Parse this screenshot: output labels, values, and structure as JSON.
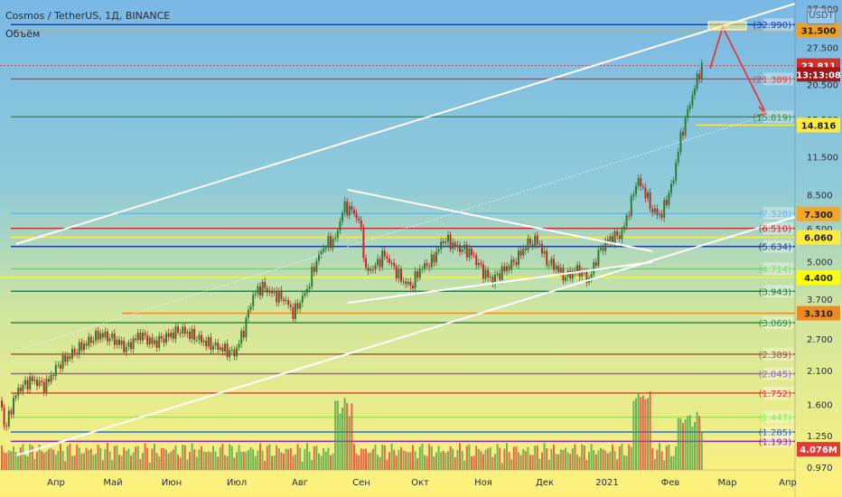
{
  "header": {
    "title": "Cosmos / TetherUS, 1Д, BINANCE",
    "volume_label": "Объём",
    "currency": "USDT"
  },
  "chart_data": {
    "type": "candlestick",
    "y_scale": "log",
    "ylim": [
      0.95,
      39
    ],
    "y_ticks": [
      "37.500",
      "27.500",
      "20.500",
      "15.500",
      "11.500",
      "8.500",
      "6.500",
      "5.000",
      "3.700",
      "2.700",
      "2.100",
      "1.600",
      "1.250",
      "0.970"
    ],
    "y_tick_values": [
      37.5,
      27.5,
      20.5,
      15.5,
      11.5,
      8.5,
      6.5,
      5.0,
      3.7,
      2.7,
      2.1,
      1.6,
      1.25,
      0.97
    ],
    "x_ticks": [
      "Апр",
      "Май",
      "Июн",
      "Июл",
      "Авг",
      "Сен",
      "Окт",
      "Ноя",
      "Дек",
      "2021",
      "Фев",
      "Мар",
      "Апр"
    ],
    "price_levels": [
      {
        "label": "32.990",
        "value": 32.99,
        "color": "#1c3fa6",
        "boxed": false
      },
      {
        "label": "31.500",
        "value": 31.5,
        "color": "#f0a020",
        "boxed": true,
        "text_color": "#222222"
      },
      {
        "label": "23.811",
        "value": 23.811,
        "color": "#d32f2f",
        "boxed": true,
        "text_color": "#ffffff",
        "dashed": true
      },
      {
        "label": "13:13:08",
        "value": 22.2,
        "color": "#a01818",
        "boxed": true,
        "text_color": "#ffffff",
        "tag_only": true
      },
      {
        "label": "21.389",
        "value": 21.389,
        "color": "#e53935",
        "boxed": false
      },
      {
        "label": "15.819",
        "value": 15.819,
        "color": "#388e3c",
        "boxed": false
      },
      {
        "label": "14.816",
        "value": 14.816,
        "color": "#ffeb3b",
        "boxed": true,
        "text_color": "#222222"
      },
      {
        "label": "7.328",
        "value": 7.328,
        "color": "#64b5f6",
        "boxed": false
      },
      {
        "label": "7.300",
        "value": 7.3,
        "color": "#f5a623",
        "boxed": true,
        "text_color": "#222222",
        "tag_only": true
      },
      {
        "label": "6.510",
        "value": 6.51,
        "color": "#c62828",
        "boxed": false
      },
      {
        "label": "6.060",
        "value": 6.06,
        "color": "#ffeb3b",
        "boxed": true,
        "text_color": "#222222"
      },
      {
        "label": "5.634",
        "value": 5.634,
        "color": "#1a3d8f",
        "boxed": false
      },
      {
        "label": "4.714",
        "value": 4.714,
        "color": "#66dd66",
        "boxed": false
      },
      {
        "label": "4.400",
        "value": 4.4,
        "color": "#ffff00",
        "boxed": true,
        "text_color": "#222222"
      },
      {
        "label": "3.943",
        "value": 3.943,
        "color": "#1f7a4a",
        "boxed": false
      },
      {
        "label": "3.310",
        "value": 3.31,
        "color": "#f08a20",
        "boxed": true,
        "text_color": "#222222"
      },
      {
        "label": "3.069",
        "value": 3.069,
        "color": "#2e8b3a",
        "boxed": false
      },
      {
        "label": "2.389",
        "value": 2.389,
        "color": "#a0522d",
        "boxed": false
      },
      {
        "label": "2.045",
        "value": 2.045,
        "color": "#9c5cc0",
        "boxed": false
      },
      {
        "label": "1.752",
        "value": 1.752,
        "color": "#e53935",
        "boxed": false
      },
      {
        "label": "1.447",
        "value": 1.447,
        "color": "#66ff44",
        "boxed": false
      },
      {
        "label": "1.285",
        "value": 1.285,
        "color": "#1e63c8",
        "boxed": false
      },
      {
        "label": "1.193",
        "value": 1.193,
        "color": "#8e24aa",
        "boxed": false
      },
      {
        "label": "4.076M",
        "value": 1.12,
        "color": "#e53935",
        "boxed": true,
        "text_color": "#ffffff",
        "tag_only": true
      }
    ]
  }
}
